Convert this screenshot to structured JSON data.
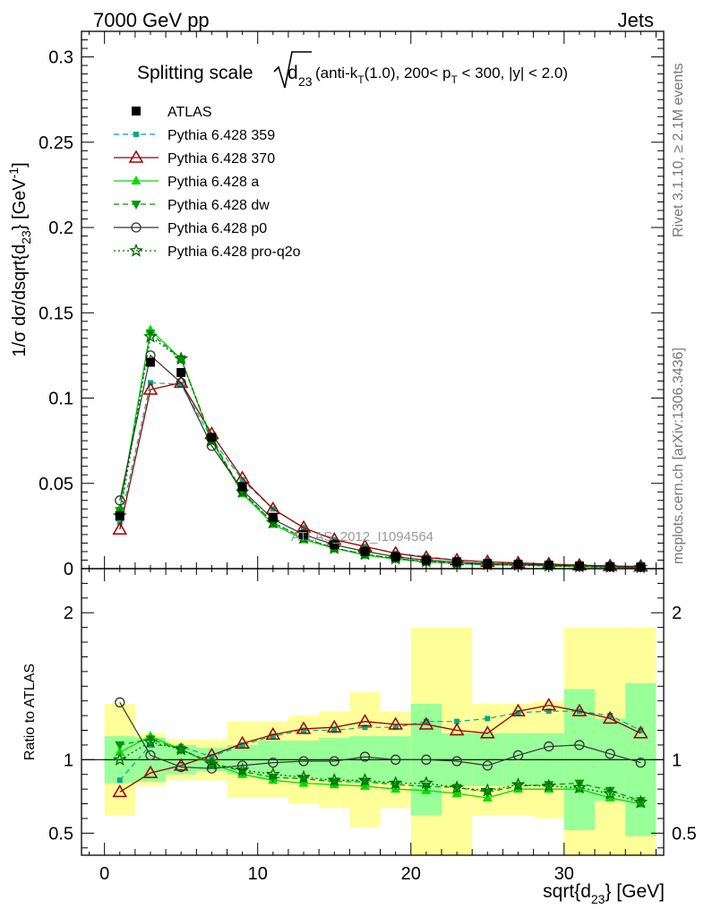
{
  "header": {
    "left": "7000 GeV pp",
    "right": "Jets"
  },
  "side_texts": {
    "rivet": "Rivet 3.1.10, ≥ 2.1M events",
    "mcplots": "mcplots.cern.ch [arXiv:1306.3436]"
  },
  "watermark": "ATLAS_2012_I1094564",
  "colors": {
    "atlas": "#000000",
    "p359": "#00aa88",
    "p370": "#990000",
    "pa": "#00dd00",
    "pdw": "#009900",
    "pp0": "#333333",
    "pq2o": "#006600",
    "band_inner": "#99ff99",
    "band_outer": "#ffff99"
  },
  "chart_data": {
    "type": "line",
    "title": "Splitting scale √(d23) (anti-kT(1.0), 200< pT < 300, |y| < 2.0)",
    "title_parts": {
      "main": "Splitting scale",
      "sub": "23",
      "rest_a": " (anti-k",
      "rest_sub1": "T",
      "rest_b": "(1.0), 200< p",
      "rest_sub2": "T",
      "rest_c": " < 300, |y| < 2.0)"
    },
    "xlabel": "sqrt{d23} [GeV]",
    "xlabel_parts": {
      "pre": "sqrt{d",
      "sub": "23",
      "post": "} [GeV]"
    },
    "ylabel": "1/σ dσ/dsqrt{d23} [GeV⁻¹]",
    "ylabel_parts": {
      "pre": "1/σ dσ/dsqrt{d",
      "sub": "23",
      "mid": "} [GeV",
      "sup": "-1",
      "post": "]"
    },
    "ratio_ylabel": "Ratio to ATLAS",
    "xlim": [
      -1.5,
      36.5
    ],
    "ylim": [
      0,
      0.315
    ],
    "ratio_ylim": [
      0.35,
      2.3
    ],
    "xticks": [
      0,
      10,
      20,
      30
    ],
    "yticks": [
      0,
      0.05,
      0.1,
      0.15,
      0.2,
      0.25,
      0.3
    ],
    "ytick_labels": [
      "0",
      "0.05",
      "0.1",
      "0.15",
      "0.2",
      "0.25",
      "0.3"
    ],
    "ratio_yticks": [
      0.5,
      1,
      2
    ],
    "ratio_ytick_labels": [
      "0.5",
      "1",
      "2"
    ],
    "legend_position": "top-left",
    "x": [
      1,
      3,
      5,
      7,
      9,
      11,
      13,
      15,
      17,
      19,
      21,
      23,
      25,
      27,
      29,
      31,
      33,
      35
    ],
    "data": {
      "name": "ATLAS",
      "values": [
        0.031,
        0.121,
        0.115,
        0.077,
        0.048,
        0.03,
        0.02,
        0.014,
        0.01,
        0.007,
        0.005,
        0.004,
        0.003,
        0.0025,
        0.002,
        0.0015,
        0.0012,
        0.001
      ]
    },
    "series": [
      {
        "name": "Pythia 6.428 359",
        "values": [
          0.027,
          0.109,
          0.108,
          0.076,
          0.052,
          0.035,
          0.024,
          0.017,
          0.013,
          0.009,
          0.007,
          0.005,
          0.004,
          0.0033,
          0.0026,
          0.002,
          0.0016,
          0.0013
        ]
      },
      {
        "name": "Pythia 6.428 370",
        "values": [
          0.023,
          0.105,
          0.109,
          0.079,
          0.053,
          0.035,
          0.024,
          0.017,
          0.013,
          0.009,
          0.0065,
          0.005,
          0.004,
          0.0033,
          0.0027,
          0.002,
          0.0016,
          0.0013
        ]
      },
      {
        "name": "Pythia 6.428 a",
        "values": [
          0.035,
          0.14,
          0.123,
          0.075,
          0.044,
          0.026,
          0.017,
          0.012,
          0.008,
          0.0056,
          0.004,
          0.003,
          0.0023,
          0.002,
          0.0016,
          0.0012,
          0.0009,
          0.0007
        ]
      },
      {
        "name": "Pythia 6.428 dw",
        "values": [
          0.034,
          0.138,
          0.123,
          0.076,
          0.045,
          0.027,
          0.018,
          0.012,
          0.0085,
          0.006,
          0.0041,
          0.0031,
          0.0024,
          0.0021,
          0.0017,
          0.0012,
          0.001,
          0.0007
        ]
      },
      {
        "name": "Pythia 6.428 p0",
        "values": [
          0.04,
          0.125,
          0.109,
          0.072,
          0.046,
          0.029,
          0.02,
          0.014,
          0.0102,
          0.007,
          0.005,
          0.0039,
          0.0029,
          0.0026,
          0.0022,
          0.0017,
          0.0013,
          0.001
        ]
      },
      {
        "name": "Pythia 6.428 pro-q2o",
        "values": [
          0.031,
          0.136,
          0.123,
          0.075,
          0.045,
          0.027,
          0.018,
          0.012,
          0.0085,
          0.0059,
          0.0042,
          0.0031,
          0.0024,
          0.0021,
          0.0016,
          0.0012,
          0.0009,
          0.0007
        ]
      }
    ],
    "ratio_series": [
      {
        "name": "Pythia 6.428 359",
        "values": [
          0.86,
          1.1,
          1.09,
          1.02,
          1.1,
          1.16,
          1.2,
          1.2,
          1.22,
          1.22,
          1.26,
          1.26,
          1.28,
          1.32,
          1.33,
          1.33,
          1.3,
          1.2
        ]
      },
      {
        "name": "Pythia 6.428 370",
        "values": [
          0.78,
          0.91,
          0.96,
          1.03,
          1.11,
          1.17,
          1.21,
          1.22,
          1.26,
          1.24,
          1.24,
          1.2,
          1.18,
          1.33,
          1.37,
          1.33,
          1.28,
          1.18
        ]
      },
      {
        "name": "Pythia 6.428 a",
        "values": [
          1.05,
          1.16,
          1.07,
          0.97,
          0.9,
          0.86,
          0.84,
          0.83,
          0.82,
          0.8,
          0.79,
          0.77,
          0.74,
          0.8,
          0.8,
          0.8,
          0.74,
          0.7
        ]
      },
      {
        "name": "Pythia 6.428 dw",
        "values": [
          1.1,
          1.14,
          1.07,
          0.98,
          0.92,
          0.88,
          0.87,
          0.85,
          0.85,
          0.83,
          0.82,
          0.81,
          0.78,
          0.82,
          0.83,
          0.84,
          0.79,
          0.72
        ]
      },
      {
        "name": "Pythia 6.428 p0",
        "values": [
          1.39,
          1.03,
          0.95,
          0.94,
          0.96,
          0.98,
          0.99,
          0.99,
          1.02,
          1.0,
          1.0,
          0.99,
          0.96,
          1.03,
          1.09,
          1.1,
          1.04,
          0.98
        ]
      },
      {
        "name": "Pythia 6.428 pro-q2o",
        "values": [
          1.0,
          1.12,
          1.07,
          0.97,
          0.93,
          0.9,
          0.88,
          0.86,
          0.86,
          0.84,
          0.84,
          0.81,
          0.79,
          0.83,
          0.82,
          0.81,
          0.77,
          0.71
        ]
      }
    ],
    "ratio_band_inner": [
      [
        0.84,
        1.16
      ],
      [
        0.85,
        1.15
      ],
      [
        0.9,
        1.1
      ],
      [
        0.92,
        1.08
      ],
      [
        0.9,
        1.1
      ],
      [
        0.87,
        1.13
      ],
      [
        0.87,
        1.13
      ],
      [
        0.85,
        1.15
      ],
      [
        0.84,
        1.16
      ],
      [
        0.84,
        1.16
      ],
      [
        0.62,
        1.38
      ],
      [
        0.82,
        1.18
      ],
      [
        0.82,
        1.18
      ],
      [
        0.82,
        1.18
      ],
      [
        0.82,
        1.18
      ],
      [
        0.52,
        1.48
      ],
      [
        0.72,
        1.28
      ],
      [
        0.48,
        1.52
      ]
    ],
    "ratio_band_outer": [
      [
        0.62,
        1.38
      ],
      [
        0.82,
        1.18
      ],
      [
        0.86,
        1.14
      ],
      [
        0.86,
        1.14
      ],
      [
        0.74,
        1.26
      ],
      [
        0.74,
        1.26
      ],
      [
        0.7,
        1.3
      ],
      [
        0.67,
        1.33
      ],
      [
        0.54,
        1.46
      ],
      [
        0.67,
        1.33
      ],
      [
        0.1,
        1.9
      ],
      [
        0.1,
        1.9
      ],
      [
        0.62,
        1.38
      ],
      [
        0.62,
        1.38
      ],
      [
        0.6,
        1.4
      ],
      [
        0.1,
        1.9
      ],
      [
        0.1,
        1.9
      ],
      [
        0.1,
        1.9
      ]
    ]
  }
}
